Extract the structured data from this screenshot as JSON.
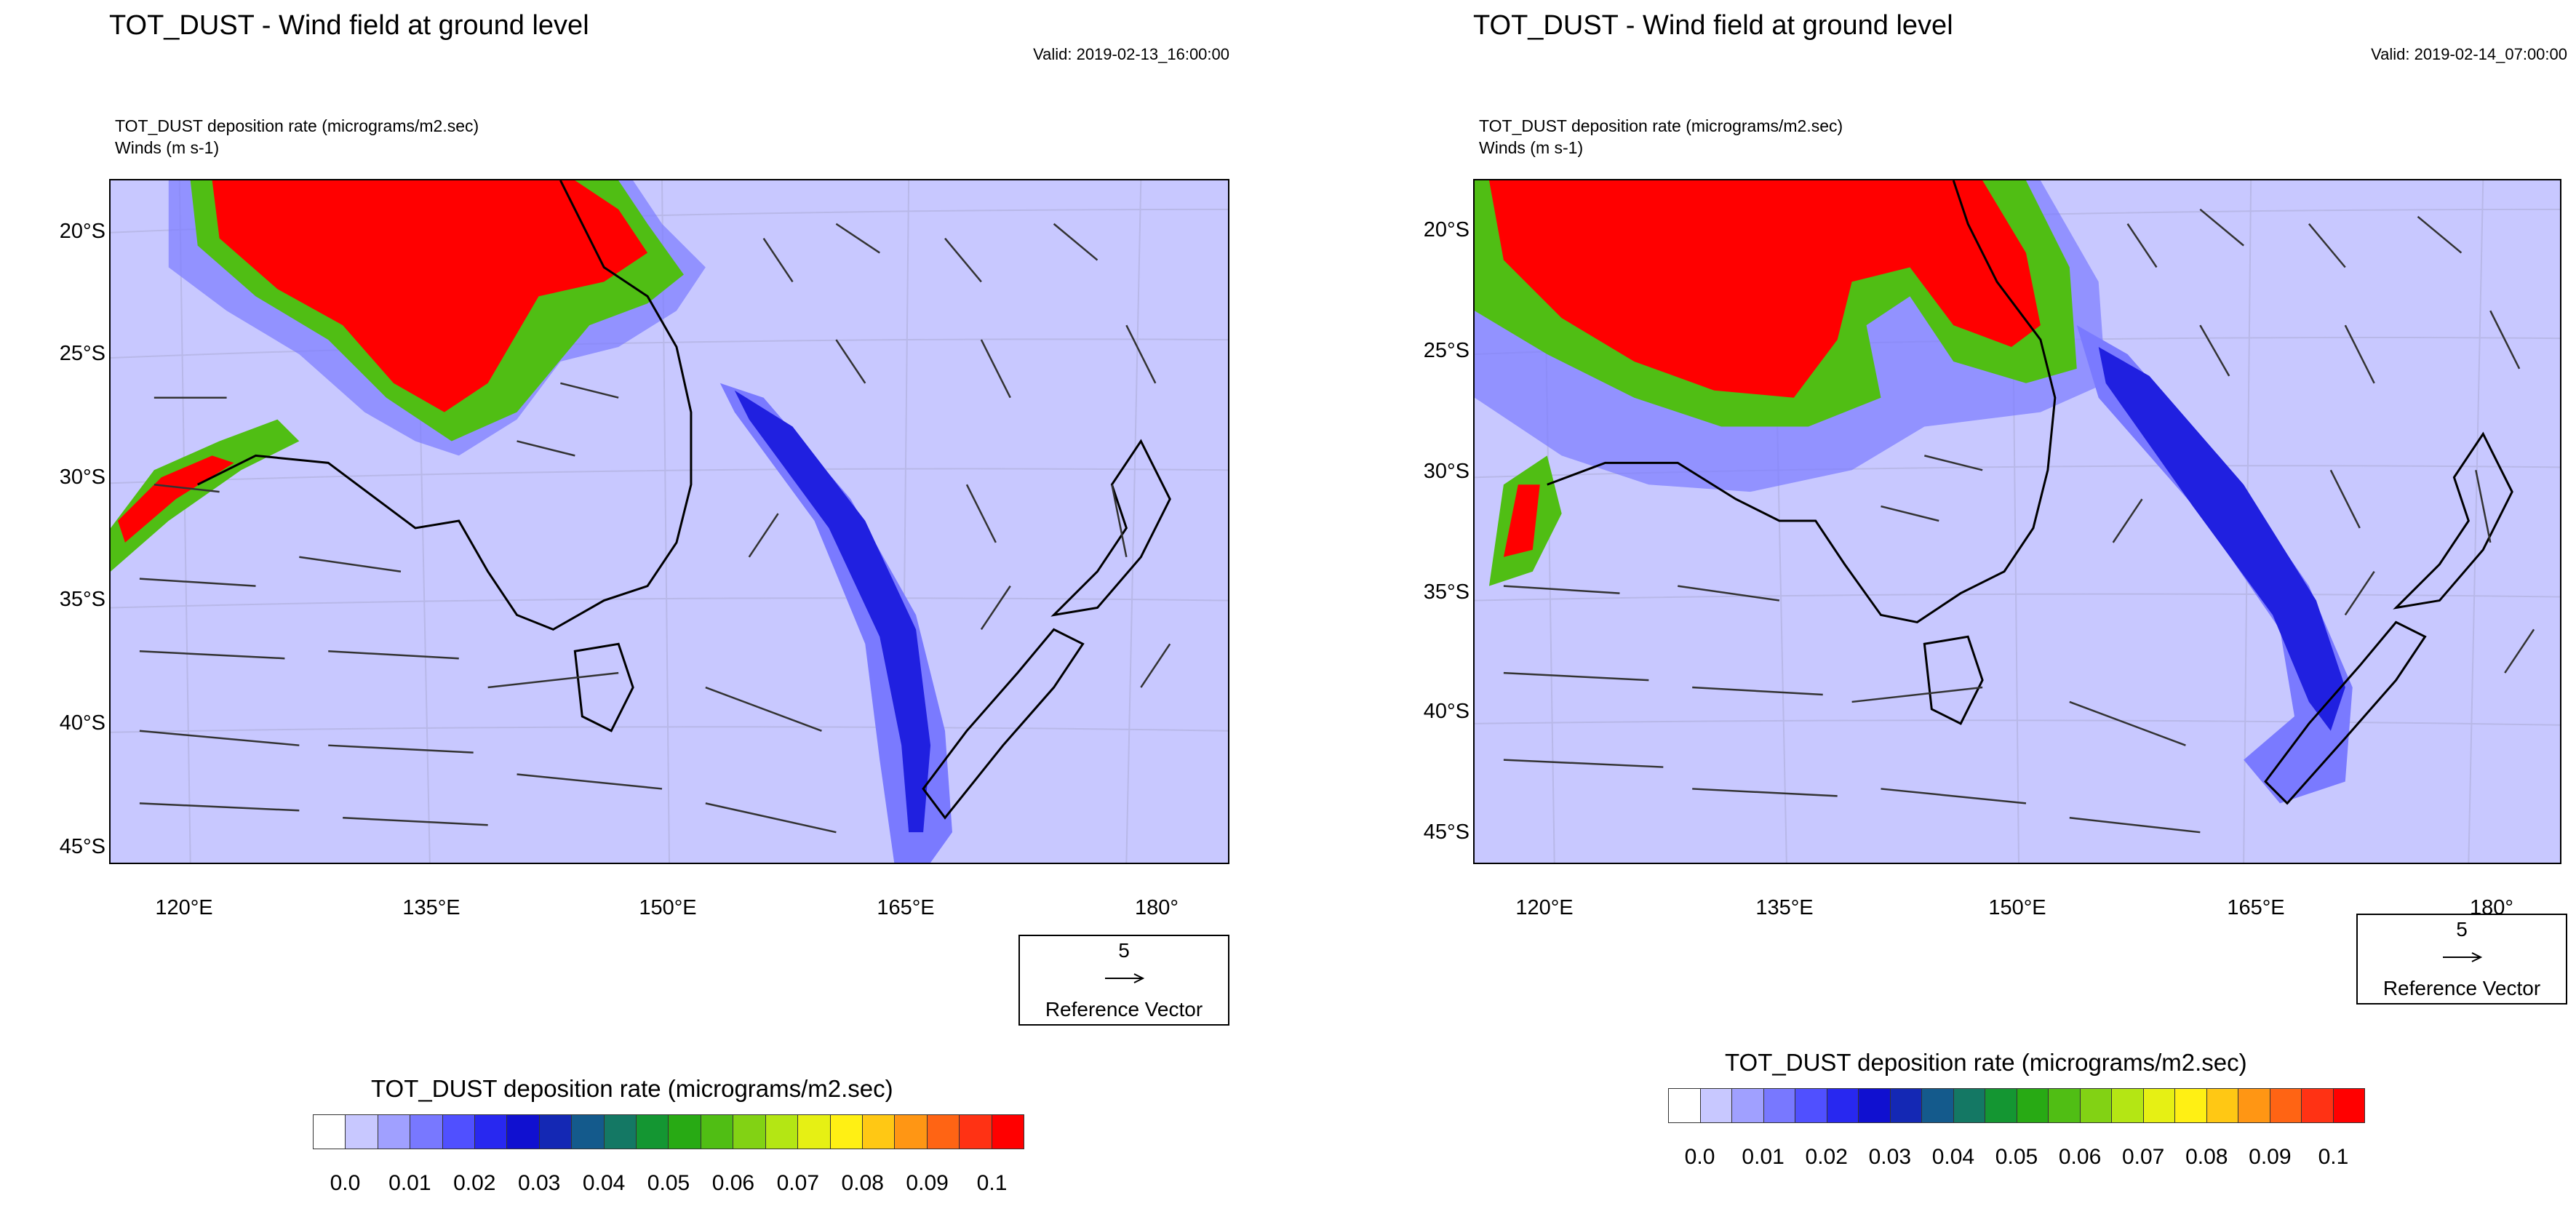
{
  "panels": [
    {
      "title": "TOT_DUST - Wind field at ground level",
      "valid": "Valid: 2019-02-13_16:00:00",
      "subtitle1": "TOT_DUST deposition rate   (micrograms/m2.sec)",
      "subtitle2": "Winds   (m s-1)",
      "lat_labels": [
        "20°S",
        "25°S",
        "30°S",
        "35°S",
        "40°S",
        "45°S"
      ],
      "lon_labels": [
        "120°E",
        "135°E",
        "150°E",
        "165°E",
        "180°"
      ],
      "reference_vector": {
        "magnitude": "5",
        "label": "Reference Vector"
      },
      "colorbar_title": "TOT_DUST deposition rate  (micrograms/m2.sec)",
      "colorbar_ticks": [
        "0.0",
        "0.01",
        "0.02",
        "0.03",
        "0.04",
        "0.05",
        "0.06",
        "0.07",
        "0.08",
        "0.09",
        "0.1"
      ]
    },
    {
      "title": "TOT_DUST - Wind field at ground level",
      "valid": "Valid: 2019-02-14_07:00:00",
      "subtitle1": "TOT_DUST deposition rate   (micrograms/m2.sec)",
      "subtitle2": "Winds   (m s-1)",
      "lat_labels": [
        "20°S",
        "25°S",
        "30°S",
        "35°S",
        "40°S",
        "45°S"
      ],
      "lon_labels": [
        "120°E",
        "135°E",
        "150°E",
        "165°E",
        "180°"
      ],
      "reference_vector": {
        "magnitude": "5",
        "label": "Reference Vector"
      },
      "colorbar_title": "TOT_DUST deposition rate  (micrograms/m2.sec)",
      "colorbar_ticks": [
        "0.0",
        "0.01",
        "0.02",
        "0.03",
        "0.04",
        "0.05",
        "0.06",
        "0.07",
        "0.08",
        "0.09",
        "0.1"
      ]
    }
  ],
  "colorbar_colors": [
    "#ffffff",
    "#c8c8ff",
    "#a0a0ff",
    "#7878ff",
    "#5050ff",
    "#2828f0",
    "#1010d0",
    "#1428b4",
    "#145a8c",
    "#147864",
    "#149632",
    "#28aa14",
    "#50be14",
    "#82d214",
    "#b4e614",
    "#e6f014",
    "#fff014",
    "#ffc814",
    "#ff9614",
    "#ff6414",
    "#ff3214",
    "#ff0000"
  ],
  "map_colors": {
    "background": "#c8c8ff",
    "dust_high": "#ff0000",
    "plume_mid": "#7a7aff",
    "plume_core": "#2020e0"
  }
}
